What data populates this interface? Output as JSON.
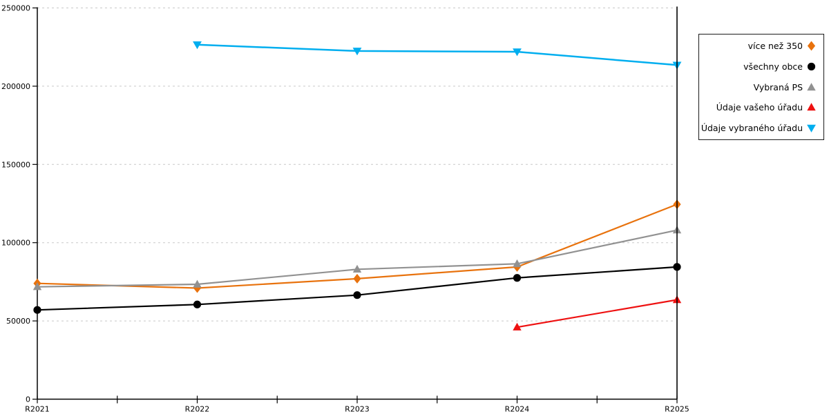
{
  "chart_data": {
    "type": "line",
    "title": "",
    "xlabel": "",
    "ylabel": "",
    "categories": [
      "R2021",
      "R2022",
      "R2023",
      "R2024",
      "R2025"
    ],
    "series": [
      {
        "name": "více než 350",
        "color": "#e8720d",
        "marker": "diamond",
        "values": [
          74000,
          71000,
          77000,
          84500,
          124500
        ]
      },
      {
        "name": "všechny obce",
        "color": "#000000",
        "marker": "circle",
        "values": [
          57000,
          60500,
          66500,
          77500,
          84500
        ]
      },
      {
        "name": "Vybraná PS",
        "color": "#919191",
        "marker": "triangle-up",
        "values": [
          71800,
          73400,
          83000,
          86500,
          108000
        ]
      },
      {
        "name": "Údaje vašeho úřadu",
        "color": "#ee1111",
        "marker": "triangle-up",
        "values": [
          null,
          null,
          null,
          46000,
          63500
        ]
      },
      {
        "name": "Údaje vybraného úřadu",
        "color": "#00aeef",
        "marker": "triangle-down",
        "values": [
          null,
          226500,
          222500,
          222000,
          213500
        ]
      }
    ],
    "ylim": [
      0,
      250000
    ],
    "yticks": [
      0,
      50000,
      100000,
      150000,
      200000,
      250000
    ],
    "ytick_labels": [
      "0",
      "50000",
      "100000",
      "150000",
      "200000",
      "250000"
    ],
    "grid": "horizontal-dashed",
    "grid_color": "#c8c8c8",
    "axis_color": "#000000",
    "legend_position": "right",
    "right_boundary_at_category": "R2025"
  }
}
